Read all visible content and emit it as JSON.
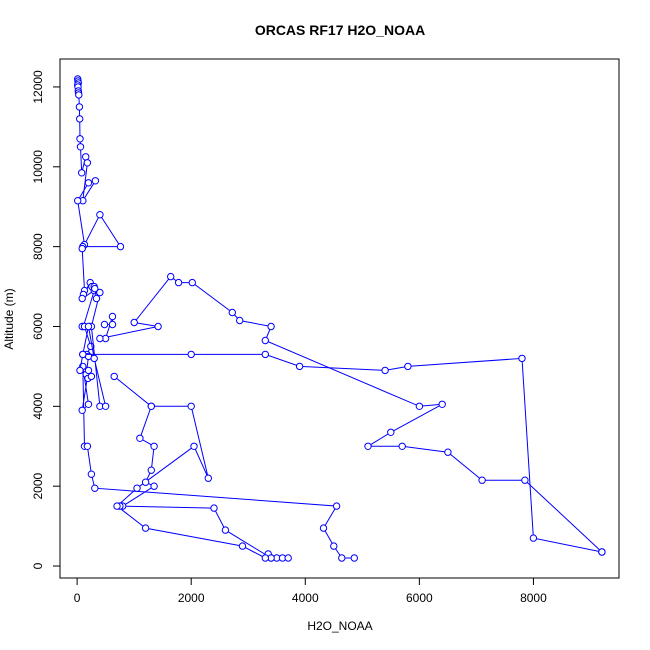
{
  "chart_data": {
    "type": "line",
    "title": "ORCAS RF17 H2O_NOAA",
    "xlabel": "H2O_NOAA",
    "ylabel": "Altitude (m)",
    "xlim": [
      -300,
      9500
    ],
    "ylim": [
      -300,
      12700
    ],
    "xticks": [
      0,
      2000,
      4000,
      6000,
      8000
    ],
    "yticks": [
      0,
      2000,
      4000,
      6000,
      8000,
      10000,
      12000
    ],
    "grid": false,
    "color": "#0000ff",
    "marker": "open-circle",
    "series": [
      {
        "x": [
          10,
          15,
          20,
          10,
          15,
          20,
          25,
          30,
          40,
          45,
          50,
          60,
          80,
          150,
          180,
          100,
          320,
          200,
          10,
          130,
          400,
          760,
          100,
          90,
          130,
          110,
          230,
          90,
          300,
          110,
          210,
          90,
          130,
          240,
          170,
          200,
          160,
          190,
          250,
          200,
          90,
          200,
          100,
          130,
          180,
          250,
          310,
          4550,
          4320,
          4500,
          4640,
          4860
        ],
        "y": [
          12200,
          12150,
          12100,
          12050,
          12000,
          11900,
          11850,
          11800,
          11500,
          11200,
          10700,
          10500,
          9850,
          10250,
          10100,
          9150,
          9650,
          9600,
          9150,
          8050,
          8800,
          8000,
          8000,
          7950,
          6900,
          6800,
          7100,
          6700,
          6900,
          6000,
          6000,
          6000,
          6000,
          5500,
          5300,
          5250,
          4800,
          4700,
          4750,
          4900,
          3900,
          4050,
          5000,
          3000,
          3000,
          2300,
          1950,
          1500,
          950,
          500,
          200,
          200
        ]
      },
      {
        "x": [
          260,
          300,
          310,
          340,
          400,
          250,
          400,
          500,
          300,
          200,
          100,
          50,
          100,
          2000,
          3300,
          3900,
          5400,
          5800,
          7800,
          8000,
          9200
        ],
        "y": [
          7000,
          7000,
          6950,
          6700,
          6850,
          6000,
          4000,
          4000,
          5200,
          6000,
          5300,
          4900,
          5300,
          5300,
          5300,
          5000,
          4900,
          5000,
          5200,
          700,
          350
        ]
      },
      {
        "x": [
          480,
          620,
          620,
          500,
          400,
          1420,
          1000,
          1640,
          1780,
          2020,
          2720,
          2850,
          3400,
          3300,
          6000,
          6400,
          5500,
          5100,
          5700,
          6500,
          7100,
          7850,
          9200
        ],
        "y": [
          6050,
          6050,
          6250,
          5700,
          5700,
          6000,
          6100,
          7250,
          7100,
          7100,
          6350,
          6150,
          6000,
          5650,
          4000,
          4050,
          3350,
          3000,
          3000,
          2850,
          2150,
          2150,
          350
        ]
      },
      {
        "x": [
          650,
          1300,
          1100,
          1350,
          1300,
          1200,
          1350,
          800,
          750,
          2400,
          2600,
          3400,
          3350,
          3500,
          3600,
          3700,
          3400,
          3300,
          2900,
          1200,
          700,
          1050,
          2050,
          2300,
          2000,
          1300
        ],
        "y": [
          4750,
          4000,
          3200,
          3000,
          2400,
          2100,
          2000,
          1500,
          1500,
          1450,
          900,
          200,
          300,
          200,
          200,
          200,
          200,
          200,
          500,
          950,
          1500,
          1950,
          3000,
          2200,
          4000,
          4000
        ]
      }
    ]
  }
}
